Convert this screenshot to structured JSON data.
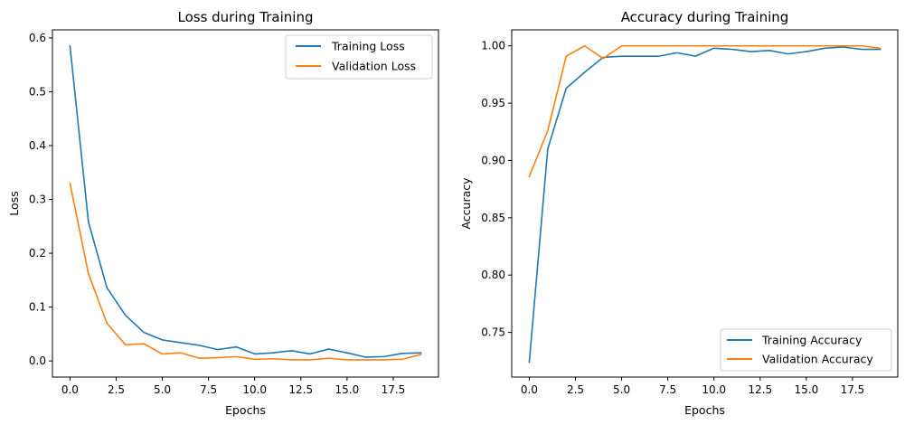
{
  "colors": {
    "training": "#1f77b4",
    "validation": "#ff7f0e",
    "legend_border": "#cccccc",
    "axes": "#000000"
  },
  "chart_data": [
    {
      "type": "line",
      "title": "Loss during Training",
      "xlabel": "Epochs",
      "ylabel": "Loss",
      "grid": false,
      "legend_position": "top-right",
      "xlim": [
        -0.95,
        19.95
      ],
      "ylim": [
        -0.03,
        0.615
      ],
      "xticks": [
        0,
        2.5,
        5,
        7.5,
        10,
        12.5,
        15,
        17.5
      ],
      "xtick_labels": [
        "0.0",
        "2.5",
        "5.0",
        "7.5",
        "10.0",
        "12.5",
        "15.0",
        "17.5"
      ],
      "yticks": [
        0,
        0.1,
        0.2,
        0.3,
        0.4,
        0.5,
        0.6
      ],
      "ytick_labels": [
        "0.0",
        "0.1",
        "0.2",
        "0.3",
        "0.4",
        "0.5",
        "0.6"
      ],
      "x": [
        0,
        1,
        2,
        3,
        4,
        5,
        6,
        7,
        8,
        9,
        10,
        11,
        12,
        13,
        14,
        15,
        16,
        17,
        18,
        19
      ],
      "series": [
        {
          "name": "Training Loss",
          "color_key": "training",
          "values": [
            0.585,
            0.258,
            0.136,
            0.085,
            0.053,
            0.039,
            0.034,
            0.029,
            0.021,
            0.026,
            0.013,
            0.015,
            0.019,
            0.013,
            0.022,
            0.015,
            0.007,
            0.008,
            0.014,
            0.015
          ]
        },
        {
          "name": "Validation Loss",
          "color_key": "validation",
          "values": [
            0.33,
            0.162,
            0.07,
            0.03,
            0.032,
            0.013,
            0.015,
            0.005,
            0.006,
            0.008,
            0.003,
            0.004,
            0.002,
            0.002,
            0.005,
            0.002,
            0.002,
            0.002,
            0.003,
            0.012
          ]
        }
      ]
    },
    {
      "type": "line",
      "title": "Accuracy during Training",
      "xlabel": "Epochs",
      "ylabel": "Accuracy",
      "grid": false,
      "legend_position": "bottom-right",
      "xlim": [
        -0.95,
        19.95
      ],
      "ylim": [
        0.711,
        1.014
      ],
      "xticks": [
        0,
        2.5,
        5,
        7.5,
        10,
        12.5,
        15,
        17.5
      ],
      "xtick_labels": [
        "0.0",
        "2.5",
        "5.0",
        "7.5",
        "10.0",
        "12.5",
        "15.0",
        "17.5"
      ],
      "yticks": [
        0.75,
        0.8,
        0.85,
        0.9,
        0.95,
        1.0
      ],
      "ytick_labels": [
        "0.75",
        "0.80",
        "0.85",
        "0.90",
        "0.95",
        "1.00"
      ],
      "x": [
        0,
        1,
        2,
        3,
        4,
        5,
        6,
        7,
        8,
        9,
        10,
        11,
        12,
        13,
        14,
        15,
        16,
        17,
        18,
        19
      ],
      "series": [
        {
          "name": "Training Accuracy",
          "color_key": "training",
          "values": [
            0.724,
            0.91,
            0.963,
            0.977,
            0.99,
            0.991,
            0.991,
            0.991,
            0.994,
            0.991,
            0.998,
            0.997,
            0.995,
            0.996,
            0.993,
            0.995,
            0.998,
            0.999,
            0.997,
            0.997
          ]
        },
        {
          "name": "Validation Accuracy",
          "color_key": "validation",
          "values": [
            0.886,
            0.926,
            0.991,
            1.0,
            0.989,
            1.0,
            1.0,
            1.0,
            1.0,
            1.0,
            1.0,
            1.0,
            1.0,
            1.0,
            1.0,
            1.0,
            1.0,
            1.0,
            1.0,
            0.998
          ]
        }
      ]
    }
  ]
}
